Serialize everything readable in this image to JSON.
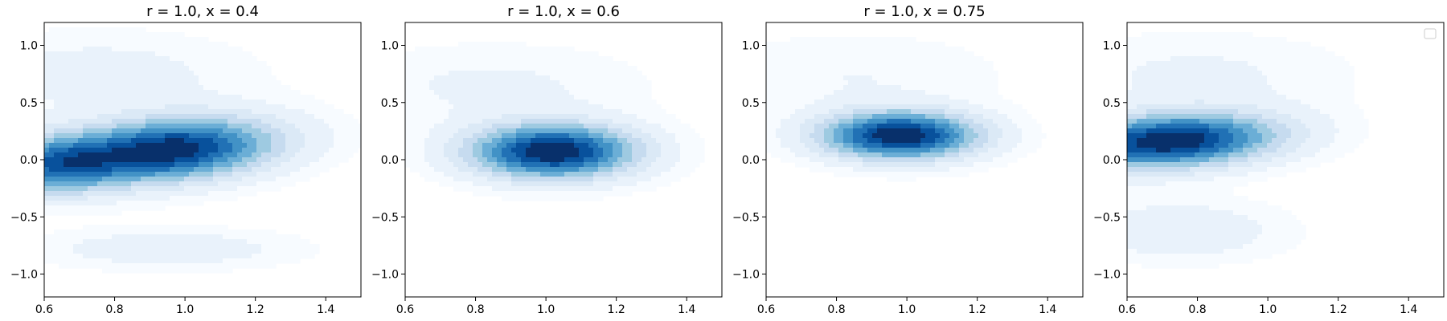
{
  "chart_data": [
    {
      "type": "kde_contour",
      "title": "r = 1.0, x = 0.4",
      "xlim": [
        0.6,
        1.5
      ],
      "ylim": [
        -1.2,
        1.2
      ],
      "xticks": [
        "0.6",
        "0.8",
        "1.0",
        "1.2",
        "1.4"
      ],
      "yticks": [
        "1.0",
        "0.5",
        "0.0",
        "−0.5",
        "−1.0"
      ],
      "peaks": [
        {
          "x": 0.95,
          "y": 0.08,
          "weight": 1.0,
          "spread_x": 0.22,
          "spread_y": 0.2,
          "tilt": 0.25
        },
        {
          "x": 0.62,
          "y": -0.05,
          "weight": 0.55,
          "spread_x": 0.12,
          "spread_y": 0.18,
          "tilt": 0.0
        },
        {
          "x": 0.95,
          "y": -0.78,
          "weight": 0.18,
          "spread_x": 0.25,
          "spread_y": 0.12,
          "tilt": 0.0
        },
        {
          "x": 0.75,
          "y": 0.75,
          "weight": 0.15,
          "spread_x": 0.3,
          "spread_y": 0.25,
          "tilt": 0.0
        }
      ],
      "legend": false
    },
    {
      "type": "kde_contour",
      "title": "r = 1.0, x = 0.6",
      "xlim": [
        0.6,
        1.5
      ],
      "ylim": [
        -1.2,
        1.2
      ],
      "xticks": [
        "0.6",
        "0.8",
        "1.0",
        "1.2",
        "1.4"
      ],
      "yticks": [
        "1.0",
        "0.5",
        "0.0",
        "−0.5",
        "−1.0"
      ],
      "peaks": [
        {
          "x": 1.02,
          "y": 0.07,
          "weight": 1.0,
          "spread_x": 0.17,
          "spread_y": 0.17,
          "tilt": 0.0
        },
        {
          "x": 0.85,
          "y": 0.65,
          "weight": 0.12,
          "spread_x": 0.3,
          "spread_y": 0.25,
          "tilt": 0.0
        }
      ],
      "legend": false
    },
    {
      "type": "kde_contour",
      "title": "r = 1.0, x = 0.75",
      "xlim": [
        0.6,
        1.5
      ],
      "ylim": [
        -1.2,
        1.2
      ],
      "xticks": [
        "0.6",
        "0.8",
        "1.0",
        "1.2",
        "1.4"
      ],
      "yticks": [
        "1.0",
        "0.5",
        "0.0",
        "−0.5",
        "−1.0"
      ],
      "peaks": [
        {
          "x": 0.98,
          "y": 0.21,
          "weight": 1.0,
          "spread_x": 0.16,
          "spread_y": 0.15,
          "tilt": 0.0
        },
        {
          "x": 0.85,
          "y": 0.75,
          "weight": 0.1,
          "spread_x": 0.3,
          "spread_y": 0.25,
          "tilt": 0.0
        }
      ],
      "legend": false
    },
    {
      "type": "kde_contour",
      "title": "",
      "xlim": [
        0.6,
        1.5
      ],
      "ylim": [
        -1.2,
        1.2
      ],
      "xticks": [
        "0.6",
        "0.8",
        "1.0",
        "1.2",
        "1.4"
      ],
      "yticks": [
        "1.0",
        "0.5",
        "0.0",
        "−0.5",
        "−1.0"
      ],
      "peaks": [
        {
          "x": 0.72,
          "y": 0.16,
          "weight": 1.0,
          "spread_x": 0.22,
          "spread_y": 0.17,
          "tilt": 0.2
        },
        {
          "x": 0.75,
          "y": -0.62,
          "weight": 0.2,
          "spread_x": 0.2,
          "spread_y": 0.18,
          "tilt": 0.0
        },
        {
          "x": 0.8,
          "y": 0.75,
          "weight": 0.12,
          "spread_x": 0.3,
          "spread_y": 0.25,
          "tilt": 0.0
        }
      ],
      "legend": true
    }
  ],
  "colors": {
    "levels": [
      "#f7fbff",
      "#e9f2fb",
      "#dbe9f6",
      "#c6dbef",
      "#9ecae1",
      "#6baed6",
      "#4292c6",
      "#2171b5",
      "#08519c",
      "#08306b"
    ],
    "axis": "#000000",
    "legend_border": "#cccccc"
  }
}
